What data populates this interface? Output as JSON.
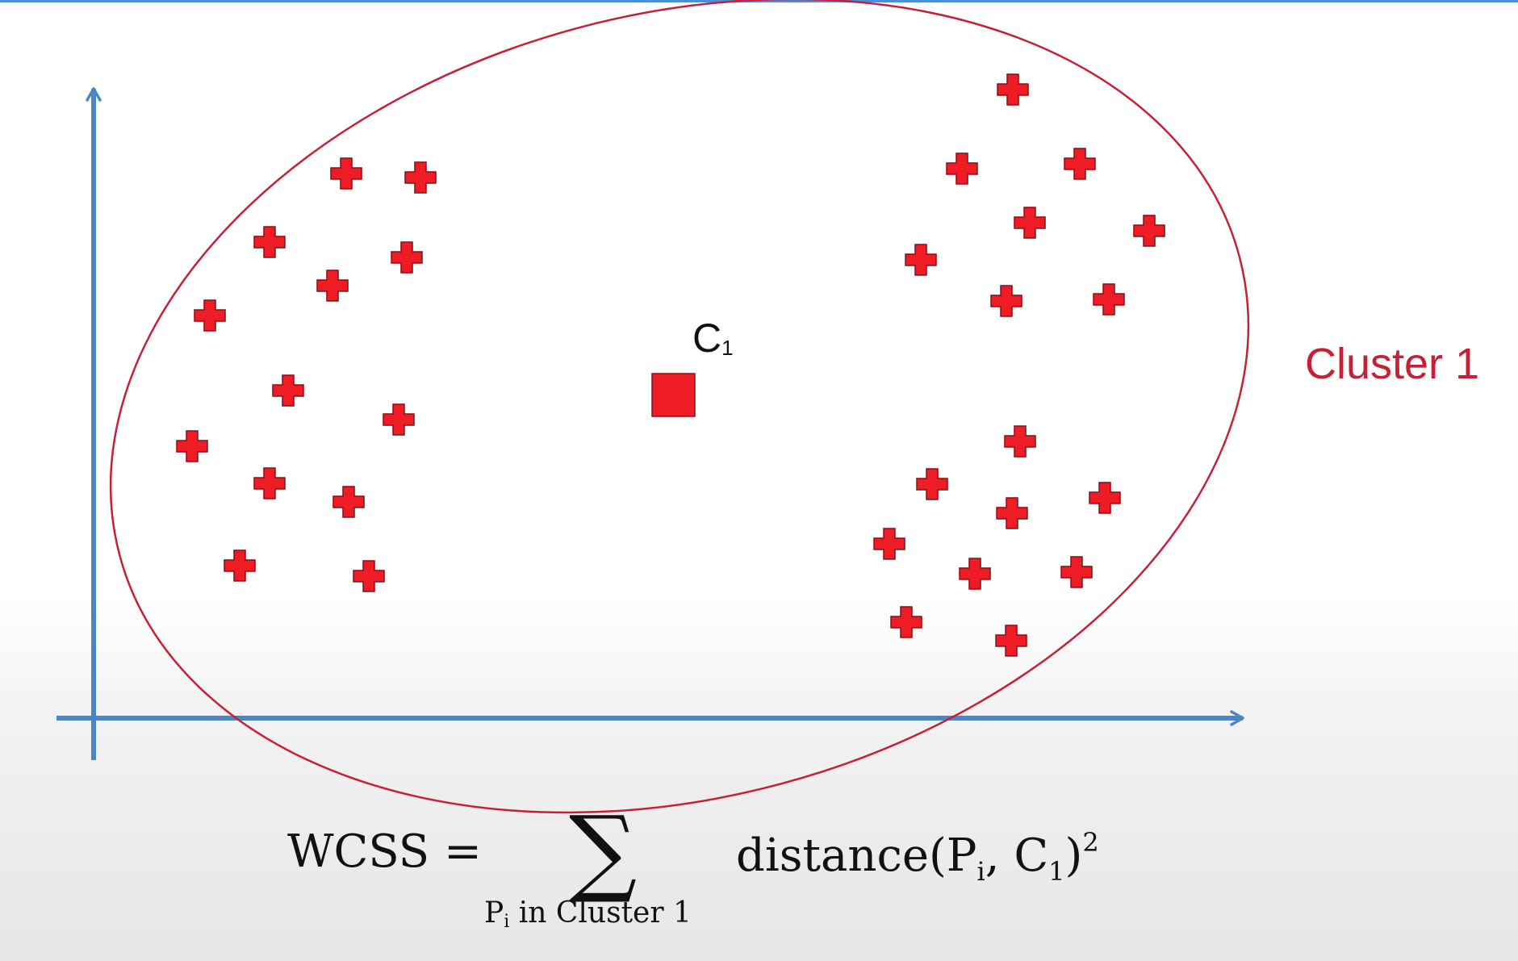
{
  "colors": {
    "axis": "#4a86c4",
    "cluster": "#c61f36",
    "point": "#ee1c25",
    "point_outline": "#8a0f15",
    "top_rule": "#4a90d6"
  },
  "labels": {
    "centroid_main": "C",
    "centroid_sub": "1",
    "cluster_name": "Cluster 1"
  },
  "formula": {
    "lhs": "WCSS =",
    "sigma": "∑",
    "rhs_func": "distance(P",
    "rhs_sub_i": "i",
    "rhs_mid": ", C",
    "rhs_sub_1": "1",
    "rhs_close": ")",
    "rhs_exp": "2",
    "under_p": "P",
    "under_sub_i": "i",
    "under_text": " in Cluster 1"
  },
  "icons": {
    "point_marker": "plus-marker-icon",
    "centroid_marker": "square-marker-icon"
  }
}
